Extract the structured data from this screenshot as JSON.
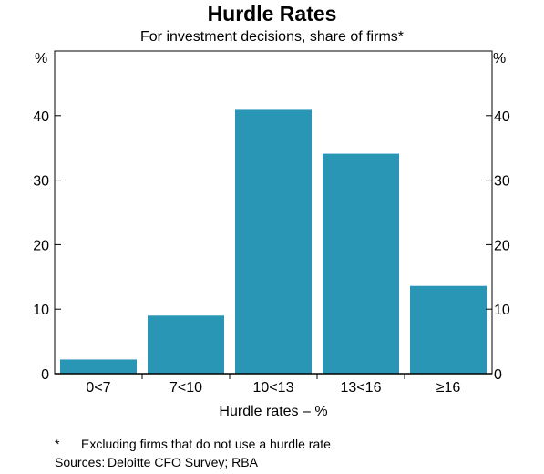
{
  "title": "Hurdle Rates",
  "subtitle": "For investment decisions, share of firms*",
  "unit_left": "%",
  "unit_right": "%",
  "footnote": {
    "marker": "*",
    "text": "Excluding firms that do not use a hurdle rate"
  },
  "sources": {
    "label": "Sources:",
    "text": "Deloitte CFO Survey; RBA"
  },
  "colors": {
    "bar": "#2996b6",
    "axis": "#000000"
  },
  "chart_data": {
    "type": "bar",
    "title": "Hurdle Rates",
    "subtitle": "For investment decisions, share of firms*",
    "xlabel": "Hurdle rates – %",
    "ylabel": "%",
    "categories": [
      "0<7",
      "7<10",
      "10<13",
      "13<16",
      "≥16"
    ],
    "values": [
      2.2,
      9.0,
      40.9,
      34.1,
      13.6
    ],
    "ylim": [
      0,
      50
    ],
    "yticks": [
      0,
      10,
      20,
      30,
      40
    ],
    "grid": false,
    "legend": "none"
  }
}
